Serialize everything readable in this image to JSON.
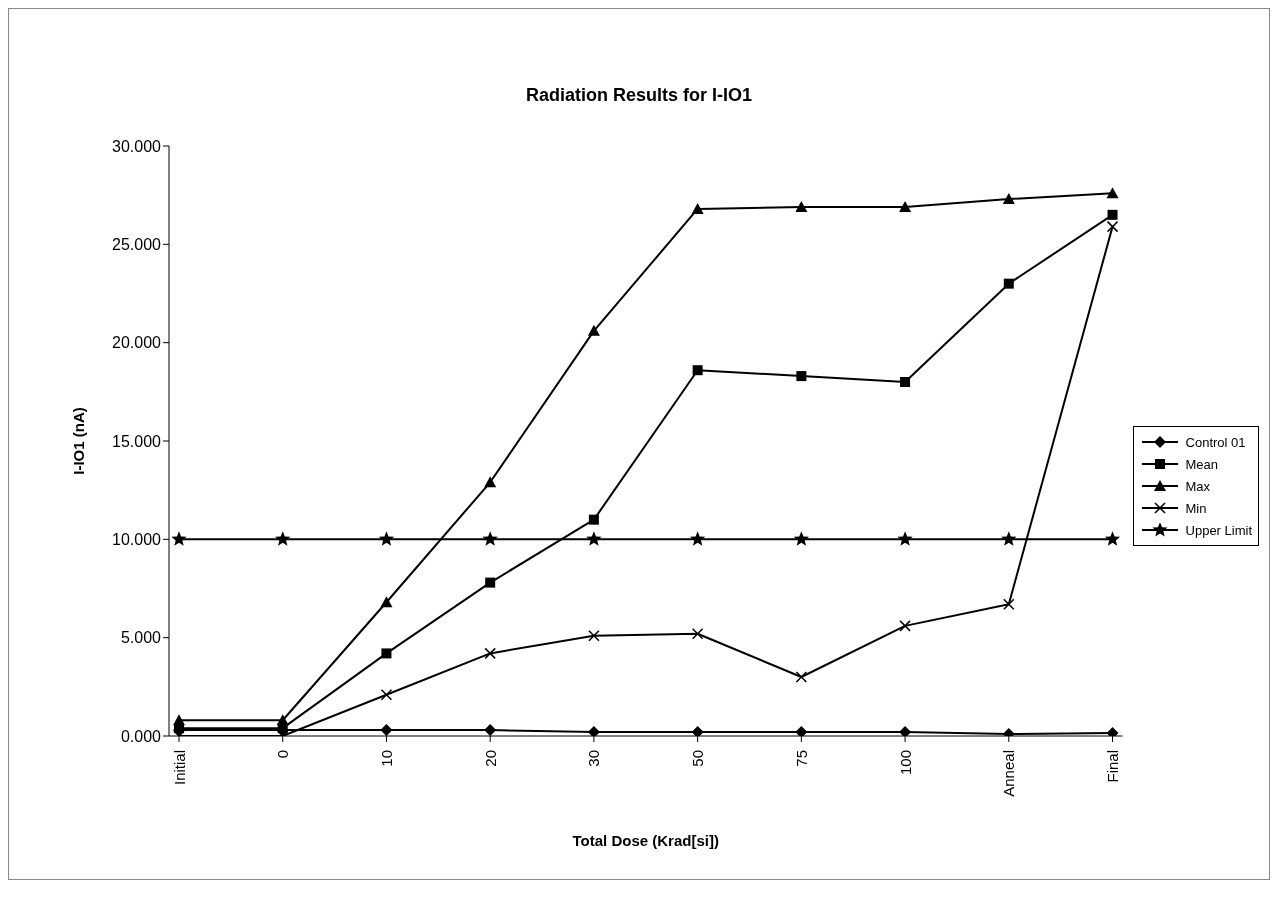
{
  "chart_data": {
    "type": "line",
    "title": "Radiation Results for I-IO1",
    "xlabel": "Total Dose (Krad[si])",
    "ylabel": "I-IO1 (nA)",
    "categories": [
      "Initial",
      "0",
      "10",
      "20",
      "30",
      "50",
      "75",
      "100",
      "Anneal",
      "Final"
    ],
    "series": [
      {
        "name": "Control 01",
        "color": "#000000",
        "marker": "diamond",
        "values": [
          0.3,
          0.3,
          0.3,
          0.3,
          0.2,
          0.2,
          0.2,
          0.2,
          0.1,
          0.15
        ]
      },
      {
        "name": "Mean",
        "color": "#000000",
        "marker": "square",
        "values": [
          0.4,
          0.4,
          4.2,
          7.8,
          11.0,
          18.6,
          18.3,
          18.0,
          23.0,
          26.5
        ]
      },
      {
        "name": "Max",
        "color": "#000000",
        "marker": "triangle",
        "values": [
          0.8,
          0.8,
          6.8,
          12.9,
          20.6,
          26.8,
          26.9,
          26.9,
          27.3,
          27.6
        ]
      },
      {
        "name": "Min",
        "color": "#000000",
        "marker": "cross",
        "values": [
          0,
          0,
          2.1,
          4.2,
          5.1,
          5.2,
          3.0,
          5.6,
          6.7,
          25.9
        ]
      },
      {
        "name": "Upper Limit",
        "color": "#000000",
        "marker": "star",
        "values": [
          10,
          10,
          10,
          10,
          10,
          10,
          10,
          10,
          10,
          10
        ]
      }
    ],
    "ylim": [
      0,
      30
    ],
    "yticks": [
      {
        "value": 0,
        "label": "0.000"
      },
      {
        "value": 5,
        "label": "5.000"
      },
      {
        "value": 10,
        "label": "10.000"
      },
      {
        "value": 15,
        "label": "15.000"
      },
      {
        "value": 20,
        "label": "20.000"
      },
      {
        "value": 25,
        "label": "25.000"
      },
      {
        "value": 30,
        "label": "30.000"
      }
    ],
    "grid": false,
    "legend": "right",
    "line_style": "solid"
  }
}
